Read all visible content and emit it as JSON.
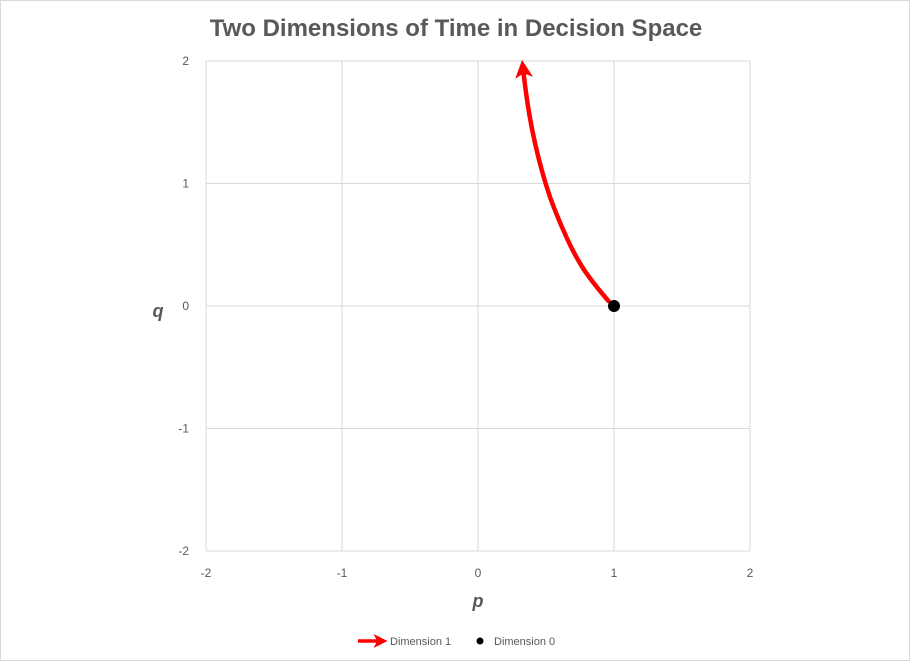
{
  "chart_data": {
    "type": "scatter",
    "title": "Two Dimensions of Time in Decision Space",
    "xlabel": "p",
    "ylabel": "q",
    "xlim": [
      -2,
      2
    ],
    "ylim": [
      -2,
      2
    ],
    "xticks": [
      "-2",
      "-1",
      "0",
      "1",
      "2"
    ],
    "yticks": [
      "2",
      "1",
      "0",
      "-1",
      "-2"
    ],
    "grid": true,
    "legend_position": "bottom",
    "series": [
      {
        "name": "Dimension 1",
        "style": "line-with-arrow",
        "color": "#ff0000",
        "points": [
          [
            0.96,
            0.04
          ],
          [
            0.82,
            0.22
          ],
          [
            0.7,
            0.44
          ],
          [
            0.61,
            0.66
          ],
          [
            0.53,
            0.88
          ],
          [
            0.47,
            1.1
          ],
          [
            0.42,
            1.32
          ],
          [
            0.38,
            1.54
          ],
          [
            0.35,
            1.76
          ],
          [
            0.33,
            1.95
          ]
        ]
      },
      {
        "name": "Dimension 0",
        "style": "marker",
        "color": "#000000",
        "points": [
          [
            1,
            0
          ]
        ]
      }
    ]
  }
}
